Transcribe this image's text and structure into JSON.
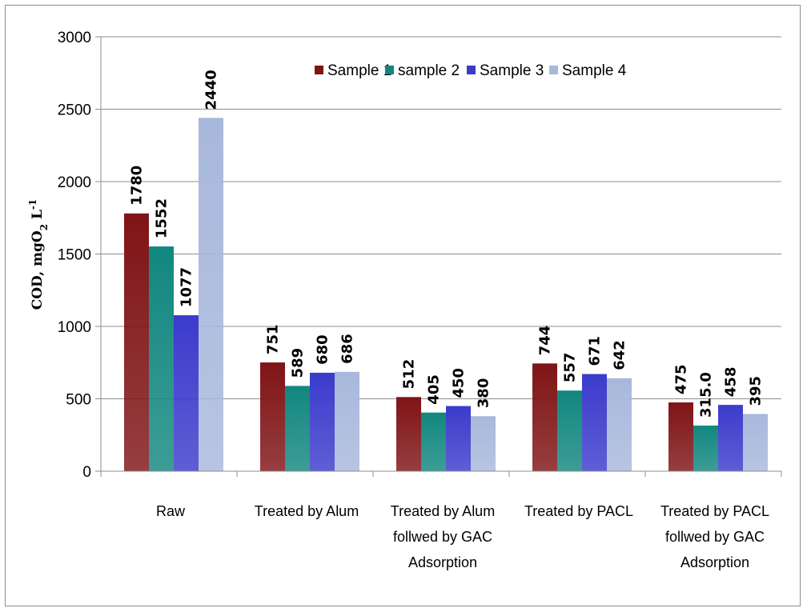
{
  "chart_data": {
    "type": "bar",
    "categories": [
      "Raw",
      "Treated by Alum",
      "Treated by Alum follwed by GAC Adsorption",
      "Treated by PACL",
      "Treated by PACL follwed by GAC Adsorption"
    ],
    "category_lines": [
      [
        "Raw"
      ],
      [
        "Treated by Alum"
      ],
      [
        "Treated by Alum",
        "follwed by GAC",
        "Adsorption"
      ],
      [
        "Treated by PACL"
      ],
      [
        "Treated by PACL",
        "follwed by GAC",
        "Adsorption"
      ]
    ],
    "series": [
      {
        "name": "Sample 1",
        "values": [
          1780,
          751,
          512,
          744,
          475
        ],
        "labels": [
          "1780",
          "751",
          "512",
          "744",
          "475"
        ],
        "color": "#7f1416"
      },
      {
        "name": "sample 2",
        "values": [
          1552,
          589,
          405,
          557,
          315
        ],
        "labels": [
          "1552",
          "589",
          "405",
          "557",
          "315.0"
        ],
        "color": "#12877f"
      },
      {
        "name": "Sample 3",
        "values": [
          1077,
          680,
          450,
          671,
          458
        ],
        "labels": [
          "1077",
          "680",
          "450",
          "671",
          "458"
        ],
        "color": "#3b3bcc"
      },
      {
        "name": "Sample 4",
        "values": [
          2440,
          686,
          380,
          642,
          395
        ],
        "labels": [
          "2440",
          "686",
          "380",
          "642",
          "395"
        ],
        "color": "#a8b8dc"
      }
    ],
    "ylabel": {
      "main": "COD, mgO",
      "sub": "2",
      "mid": " L",
      "sup": "-1"
    },
    "ylim": [
      0,
      3000
    ],
    "yticks": [
      0,
      500,
      1000,
      1500,
      2000,
      2500,
      3000
    ],
    "grid": true,
    "legend_position": "top"
  }
}
